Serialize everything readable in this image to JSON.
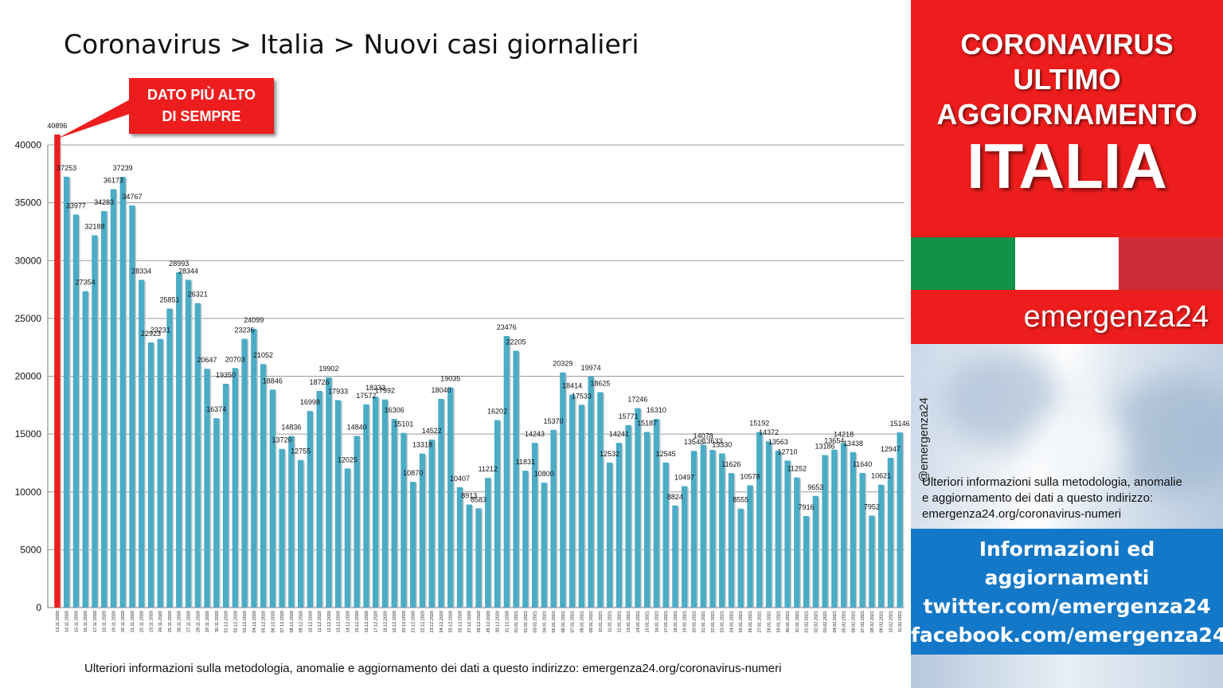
{
  "title": "Coronavirus > Italia > Nuovi casi giornalieri",
  "callout": {
    "line1": "DATO PIÙ ALTO",
    "line2": "DI SEMPRE"
  },
  "bottom_note": "Ulteriori informazioni sulla metodologia, anomalie e aggiornamento dei dati a questo indirizzo: emergenza24.org/coronavirus-numeri",
  "colors": {
    "bar": "#4bacc6",
    "highlight_bar": "#ee1d1d",
    "header_red": "#ee1d1d",
    "blue_panel": "#1478c8",
    "flag_green": "#119246",
    "flag_white": "#ffffff",
    "flag_red": "#cd2c37"
  },
  "sidebar": {
    "header_lines": [
      "CORONAVIRUS",
      "ULTIMO",
      "AGGIORNAMENTO"
    ],
    "country": "ITALIA",
    "brand": "emergenza24",
    "handle": "@emergenza24",
    "info": [
      "Ulteriori informazioni sulla metodologia, anomalie",
      "e aggiornamento dei dati a questo indirizzo:",
      "emergenza24.org/coronavirus-numeri"
    ],
    "links": [
      "Informazioni ed",
      "aggiornamenti",
      "twitter.com/emergenza24",
      "facebook.com/emergenza24"
    ]
  },
  "chart_data": {
    "type": "bar",
    "title": "Coronavirus > Italia > Nuovi casi giornalieri",
    "ylim": [
      0,
      40000
    ],
    "yticks": [
      0,
      5000,
      10000,
      15000,
      20000,
      25000,
      30000,
      35000,
      40000
    ],
    "grid": true,
    "highlight_index": 0,
    "categories": [
      "13.11.2020",
      "14.11.2020",
      "15.11.2020",
      "16.11.2020",
      "17.11.2020",
      "18.11.2020",
      "19.11.2020",
      "20.11.2020",
      "21.11.2020",
      "22.11.2020",
      "23.11.2020",
      "24.11.2020",
      "25.11.2020",
      "26.11.2020",
      "27.11.2020",
      "28.11.2020",
      "29.11.2020",
      "30.11.2020",
      "01.12.2020",
      "02.12.2020",
      "03.12.2020",
      "04.12.2020",
      "05.12.2020",
      "06.12.2020",
      "07.12.2020",
      "08.12.2020",
      "09.12.2020",
      "10.12.2020",
      "11.12.2020",
      "12.12.2020",
      "13.12.2020",
      "14.12.2020",
      "15.12.2020",
      "16.12.2020",
      "17.12.2020",
      "18.12.2020",
      "19.12.2020",
      "20.12.2020",
      "21.12.2020",
      "22.12.2020",
      "23.12.2020",
      "24.12.2020",
      "25.12.2020",
      "26.12.2020",
      "27.12.2020",
      "28.12.2020",
      "29.12.2020",
      "30.12.2020",
      "31.12.2020",
      "01.01.2021",
      "02.01.2021",
      "03.01.2021",
      "04.01.2021",
      "05.01.2021",
      "06.01.2021",
      "07.01.2021",
      "08.01.2021",
      "09.01.2021",
      "10.01.2021",
      "11.01.2021",
      "12.01.2021",
      "13.01.2021",
      "14.01.2021",
      "15.01.2021",
      "16.01.2021",
      "17.01.2021",
      "18.01.2021",
      "19.01.2021",
      "20.01.2021",
      "21.01.2021",
      "22.01.2021",
      "23.01.2021",
      "24.01.2021",
      "25.01.2021",
      "26.01.2021",
      "27.01.2021",
      "28.01.2021",
      "29.01.2021",
      "30.01.2021",
      "31.01.2021",
      "01.02.2021",
      "02.02.2021",
      "03.02.2021",
      "04.02.2021",
      "05.02.2021",
      "06.02.2021",
      "07.02.2021",
      "08.02.2021",
      "09.02.2021",
      "10.02.2021",
      "11.02.2021"
    ],
    "values": [
      40896,
      37253,
      33977,
      27354,
      32188,
      34283,
      36173,
      37239,
      34767,
      28334,
      22923,
      23231,
      25851,
      28993,
      28344,
      26321,
      20647,
      16374,
      19350,
      20703,
      23236,
      24099,
      21052,
      18846,
      13720,
      14836,
      12755,
      16998,
      18726,
      19902,
      17933,
      12025,
      14840,
      17572,
      18233,
      17992,
      16306,
      15101,
      10870,
      13318,
      14522,
      18040,
      19035,
      10407,
      8913,
      8583,
      11212,
      16202,
      23476,
      22205,
      11831,
      14243,
      10800,
      15370,
      20329,
      18414,
      17533,
      19974,
      18625,
      12532,
      14241,
      15771,
      17246,
      15187,
      16310,
      12545,
      8824,
      10497,
      13548,
      14078,
      13633,
      13330,
      11626,
      8555,
      10578,
      15192,
      14372,
      13563,
      12710,
      11252,
      7916,
      9653,
      13186,
      13654,
      14218,
      13438,
      11640,
      7952,
      10621,
      12947,
      15146
    ]
  }
}
